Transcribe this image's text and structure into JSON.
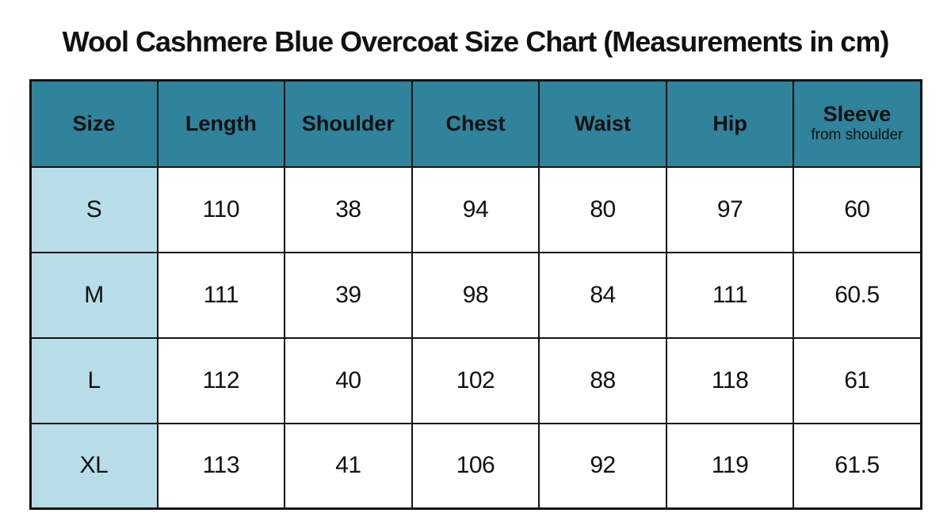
{
  "colors": {
    "header-bg": "#2f839b",
    "size-col-bg": "#b7dde8",
    "border-color": "#141414",
    "text-color": "#111111",
    "page-bg": "#ffffff"
  },
  "chart_data": {
    "type": "table",
    "title": "Wool Cashmere Blue Overcoat Size Chart (Measurements in cm)",
    "unit": "cm",
    "columns": [
      "Size",
      "Length",
      "Shoulder",
      "Chest",
      "Waist",
      "Hip",
      "Sleeve"
    ],
    "sleeve_note": "from shoulder",
    "rows": [
      [
        "S",
        "110",
        "38",
        "94",
        "80",
        "97",
        "60"
      ],
      [
        "M",
        "111",
        "39",
        "98",
        "84",
        "111",
        "60.5"
      ],
      [
        "L",
        "112",
        "40",
        "102",
        "88",
        "118",
        "61"
      ],
      [
        "XL",
        "113",
        "41",
        "106",
        "92",
        "119",
        "61.5"
      ]
    ]
  }
}
